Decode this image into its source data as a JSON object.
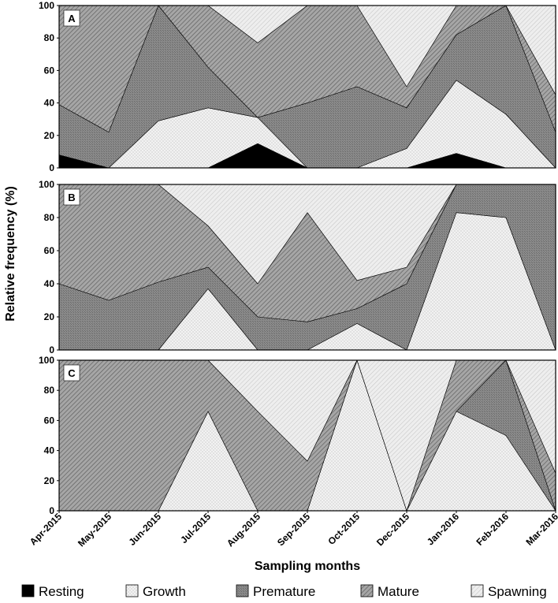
{
  "chart_data": {
    "type": "area",
    "stacked": true,
    "months": [
      "Apr-2015",
      "May-2015",
      "Jun-2015",
      "Jul-2015",
      "Aug-2015",
      "Sep-2015",
      "Oct-2015",
      "Dec-2015",
      "Jan-2016",
      "Feb-2016",
      "Mar-2016"
    ],
    "xlabel": "Sampling months",
    "ylabel": "Relative frequency (%)",
    "ylim": [
      0,
      100
    ],
    "yticks": [
      "0",
      "20",
      "40",
      "60",
      "80",
      "100"
    ],
    "legend_position": "bottom",
    "stages": [
      {
        "name": "Resting",
        "color": "#000000",
        "pattern": "solid"
      },
      {
        "name": "Growth",
        "color": "#eeeeee",
        "pattern": "dots"
      },
      {
        "name": "Premature",
        "color": "#8c8c8c",
        "pattern": "dense"
      },
      {
        "name": "Mature",
        "color": "#9a9a9a",
        "pattern": "diagonal"
      },
      {
        "name": "Spawning",
        "color": "#e6e6e6",
        "pattern": "light-diagonal"
      }
    ],
    "panels": [
      {
        "label": "A",
        "series": [
          {
            "name": "Resting",
            "values": [
              8,
              0,
              0,
              0,
              15,
              0,
              0,
              0,
              9,
              0,
              0
            ]
          },
          {
            "name": "Growth",
            "values": [
              0,
              0,
              29,
              37,
              16,
              0,
              0,
              12,
              45,
              33,
              0
            ]
          },
          {
            "name": "Premature",
            "values": [
              31,
              22,
              71,
              25,
              0,
              40,
              50,
              25,
              28,
              67,
              22
            ]
          },
          {
            "name": "Mature",
            "values": [
              61,
              78,
              0,
              38,
              46,
              60,
              50,
              13,
              18,
              0,
              23
            ]
          },
          {
            "name": "Spawning",
            "values": [
              0,
              0,
              0,
              0,
              23,
              0,
              0,
              50,
              0,
              0,
              55
            ]
          }
        ]
      },
      {
        "label": "B",
        "series": [
          {
            "name": "Resting",
            "values": [
              0,
              0,
              0,
              0,
              0,
              0,
              0,
              0,
              0,
              0,
              0
            ]
          },
          {
            "name": "Growth",
            "values": [
              0,
              0,
              0,
              37,
              0,
              0,
              16,
              0,
              83,
              80,
              0
            ]
          },
          {
            "name": "Premature",
            "values": [
              40,
              30,
              41,
              13,
              20,
              17,
              9,
              40,
              17,
              20,
              100
            ]
          },
          {
            "name": "Mature",
            "values": [
              60,
              70,
              59,
              25,
              20,
              66,
              17,
              10,
              0,
              0,
              0
            ]
          },
          {
            "name": "Spawning",
            "values": [
              0,
              0,
              0,
              25,
              60,
              17,
              58,
              50,
              0,
              0,
              0
            ]
          }
        ]
      },
      {
        "label": "C",
        "series": [
          {
            "name": "Resting",
            "values": [
              0,
              0,
              0,
              0,
              0,
              0,
              0,
              0,
              0,
              0,
              0
            ]
          },
          {
            "name": "Growth",
            "values": [
              0,
              0,
              0,
              66,
              0,
              0,
              100,
              0,
              66,
              50,
              0
            ]
          },
          {
            "name": "Premature",
            "values": [
              0,
              0,
              0,
              0,
              0,
              0,
              0,
              0,
              0,
              50,
              0
            ]
          },
          {
            "name": "Mature",
            "values": [
              100,
              100,
              100,
              34,
              66,
              33,
              0,
              0,
              34,
              0,
              25
            ]
          },
          {
            "name": "Spawning",
            "values": [
              0,
              0,
              0,
              0,
              34,
              67,
              0,
              100,
              0,
              0,
              75
            ]
          }
        ]
      }
    ]
  }
}
